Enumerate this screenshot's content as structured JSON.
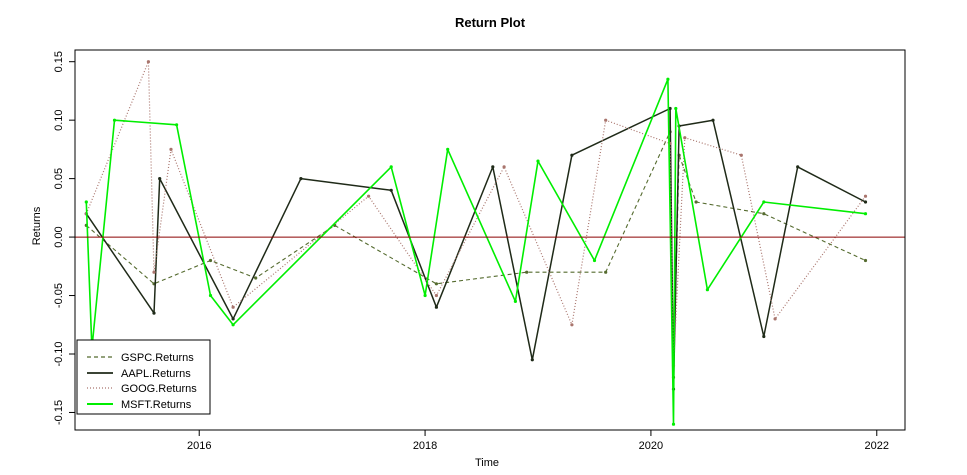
{
  "chart_data": {
    "type": "line",
    "title": "Return Plot",
    "xlabel": "Time",
    "ylabel": "Returns",
    "xlim": [
      2014.9,
      2022.25
    ],
    "ylim": [
      -0.165,
      0.16
    ],
    "x_ticks": [
      2016,
      2018,
      2020,
      2022
    ],
    "x_tick_labels": [
      "2016",
      "2018",
      "2020",
      "2022"
    ],
    "y_ticks": [
      -0.15,
      -0.1,
      -0.05,
      0.0,
      0.05,
      0.1,
      0.15
    ],
    "y_tick_labels": [
      "-0.15",
      "-0.10",
      "-0.05",
      "0.00",
      "0.05",
      "0.10",
      "0.15"
    ],
    "grid": false,
    "legend_position": "bottom-left",
    "reference_line": 0,
    "series": [
      {
        "name": "GSPC.Returns",
        "color": "#556b2f",
        "line_style": "dashed",
        "x": [
          2015.0,
          2015.6,
          2016.1,
          2016.5,
          2017.2,
          2018.1,
          2018.9,
          2019.6,
          2020.17,
          2020.2,
          2020.25,
          2020.4,
          2021.0,
          2021.9
        ],
        "values": [
          0.01,
          -0.04,
          -0.02,
          -0.035,
          0.01,
          -0.04,
          -0.03,
          -0.03,
          0.09,
          -0.12,
          0.07,
          0.03,
          0.02,
          -0.02
        ]
      },
      {
        "name": "AAPL.Returns",
        "color": "#1f2a18",
        "line_style": "solid",
        "x": [
          2015.0,
          2015.6,
          2015.65,
          2016.3,
          2016.9,
          2017.7,
          2018.1,
          2018.6,
          2018.95,
          2019.3,
          2020.17,
          2020.2,
          2020.25,
          2020.55,
          2021.0,
          2021.3,
          2021.9
        ],
        "values": [
          0.02,
          -0.065,
          0.05,
          -0.07,
          0.05,
          0.04,
          -0.06,
          0.06,
          -0.105,
          0.07,
          0.11,
          -0.13,
          0.095,
          0.1,
          -0.085,
          0.06,
          0.03
        ]
      },
      {
        "name": "GOOG.Returns",
        "color": "#a9756d",
        "line_style": "dotted",
        "x": [
          2015.0,
          2015.55,
          2015.6,
          2015.75,
          2016.3,
          2017.5,
          2018.1,
          2018.7,
          2019.3,
          2019.6,
          2020.17,
          2020.2,
          2020.3,
          2020.8,
          2021.1,
          2021.9
        ],
        "values": [
          0.02,
          0.15,
          -0.03,
          0.075,
          -0.06,
          0.035,
          -0.05,
          0.06,
          -0.075,
          0.1,
          0.08,
          -0.11,
          0.085,
          0.07,
          -0.07,
          0.035
        ]
      },
      {
        "name": "MSFT.Returns",
        "color": "#00ee00",
        "line_style": "solid",
        "x": [
          2015.0,
          2015.05,
          2015.25,
          2015.8,
          2016.1,
          2016.3,
          2017.7,
          2018.0,
          2018.2,
          2018.8,
          2019.0,
          2019.5,
          2020.15,
          2020.2,
          2020.22,
          2020.5,
          2021.0,
          2021.9
        ],
        "values": [
          0.03,
          -0.095,
          0.1,
          0.096,
          -0.05,
          -0.075,
          0.06,
          -0.05,
          0.075,
          -0.055,
          0.065,
          -0.02,
          0.135,
          -0.16,
          0.11,
          -0.045,
          0.03,
          0.02
        ]
      }
    ]
  }
}
